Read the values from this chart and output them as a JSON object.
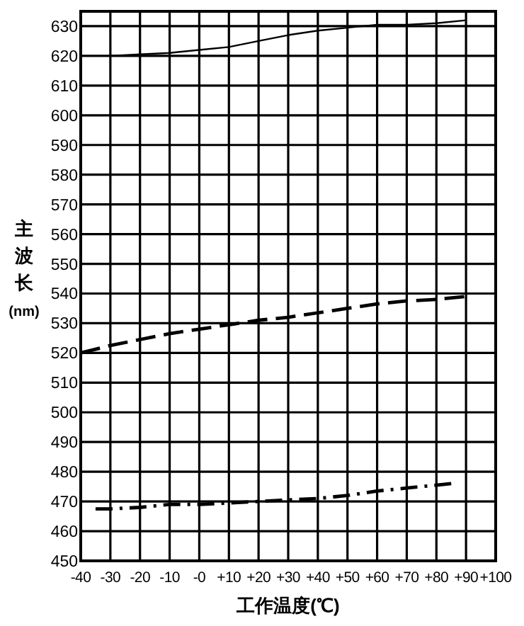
{
  "chart_data": {
    "type": "line",
    "xlabel": "工作温度(℃)",
    "ylabel": "主波长(nm)",
    "xlim": [
      -40,
      100
    ],
    "ylim": [
      450,
      635
    ],
    "xticks": [
      -40,
      -30,
      -20,
      -10,
      {
        "value": 0,
        "label": "-0"
      },
      {
        "value": 10,
        "label": "+10"
      },
      {
        "value": 20,
        "label": "+20"
      },
      {
        "value": 30,
        "label": "+30"
      },
      {
        "value": 40,
        "label": "+40"
      },
      {
        "value": 50,
        "label": "+50"
      },
      {
        "value": 60,
        "label": "+60"
      },
      {
        "value": 70,
        "label": "+70"
      },
      {
        "value": 80,
        "label": "+80"
      },
      {
        "value": 90,
        "label": "+90"
      },
      {
        "value": 100,
        "label": "+100"
      }
    ],
    "yticks": [
      450,
      460,
      470,
      480,
      490,
      500,
      510,
      520,
      530,
      540,
      550,
      560,
      570,
      580,
      590,
      600,
      610,
      620,
      630
    ],
    "grid": true,
    "marker": "none",
    "series": [
      {
        "color": "#000000",
        "line_style": "solid",
        "x": [
          -30,
          -20,
          -10,
          0,
          10,
          20,
          30,
          40,
          50,
          60,
          70,
          80,
          90
        ],
        "values": [
          620,
          620.5,
          621,
          622,
          623,
          625,
          627,
          628.5,
          629.5,
          630.5,
          630.5,
          631,
          632
        ]
      },
      {
        "color": "#000000",
        "line_style": "dashed",
        "x": [
          -40,
          -30,
          -20,
          -10,
          0,
          10,
          20,
          30,
          40,
          50,
          60,
          70,
          80,
          90
        ],
        "values": [
          520,
          522.5,
          524.5,
          526.5,
          528,
          529.5,
          531,
          532,
          533.5,
          535,
          536.5,
          537.5,
          538,
          539
        ]
      },
      {
        "color": "#000000",
        "line_style": "dashdot",
        "x": [
          -35,
          -30,
          -20,
          -10,
          0,
          10,
          20,
          30,
          40,
          50,
          60,
          70,
          80,
          85
        ],
        "values": [
          467.5,
          467.5,
          468,
          469,
          469,
          469.5,
          470,
          470.5,
          471,
          472,
          473.5,
          474.5,
          475.5,
          476
        ]
      }
    ]
  }
}
